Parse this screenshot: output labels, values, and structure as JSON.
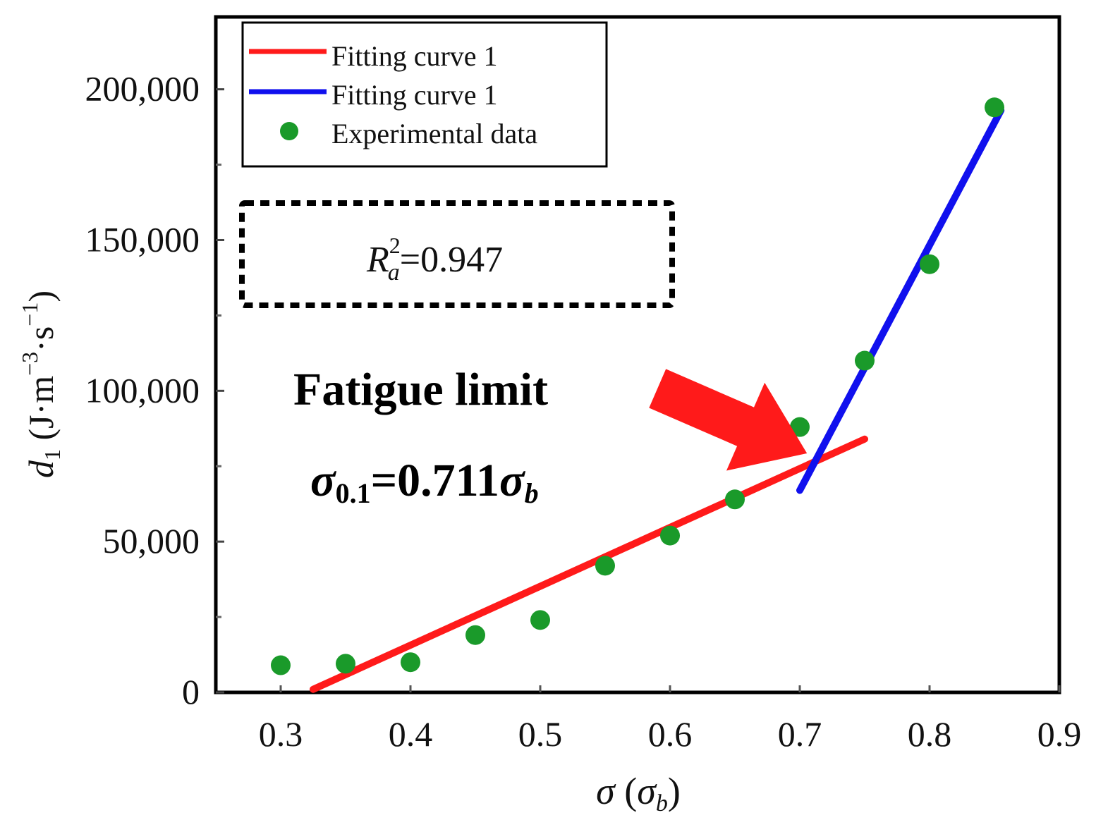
{
  "chart_data": {
    "type": "scatter",
    "xlabel": {
      "main": "σ",
      "open": " (",
      "sym": "σ",
      "sub": "b",
      "close": ")"
    },
    "ylabel": {
      "d": "d",
      "d_sub": "1",
      "unit_open": " (J·m",
      "exp1": "−3",
      "mid": "·s",
      "exp2": "−1",
      "close": ")"
    },
    "xlim": [
      0.25,
      0.9
    ],
    "ylim": [
      0,
      224000
    ],
    "x_ticks": [
      0.3,
      0.4,
      0.5,
      0.6,
      0.7,
      0.8,
      0.9
    ],
    "x_tick_labels": [
      "0.3",
      "0.4",
      "0.5",
      "0.6",
      "0.7",
      "0.8",
      "0.9"
    ],
    "y_ticks": [
      0,
      50000,
      100000,
      150000,
      200000
    ],
    "y_tick_labels": [
      "0",
      "50,000",
      "100,000",
      "150,000",
      "200,000"
    ],
    "y_minor_ticks": [
      25000,
      75000,
      125000,
      175000
    ],
    "series": [
      {
        "name": "Experimental data",
        "type": "scatter",
        "color": "#1a9a2a",
        "x": [
          0.3,
          0.35,
          0.4,
          0.45,
          0.5,
          0.55,
          0.6,
          0.65,
          0.7,
          0.75,
          0.8,
          0.85
        ],
        "y": [
          9000,
          9500,
          10000,
          19000,
          24000,
          42000,
          52000,
          64000,
          88000,
          110000,
          142000,
          194000
        ]
      },
      {
        "name": "Fitting curve 1",
        "type": "line",
        "color": "#ff1a1a",
        "x": [
          0.325,
          0.75
        ],
        "y": [
          1000,
          84000
        ]
      },
      {
        "name": "Fitting curve 1",
        "type": "line",
        "color": "#1010ee",
        "x": [
          0.7,
          0.855
        ],
        "y": [
          67000,
          193000
        ]
      }
    ],
    "legend": {
      "position": "top-left",
      "entries": [
        {
          "label": "Fitting curve 1",
          "marker": "line",
          "color": "#ff1a1a"
        },
        {
          "label": "Fitting curve 1",
          "marker": "line",
          "color": "#1010ee"
        },
        {
          "label": "Experimental data",
          "marker": "dot",
          "color": "#1a9a2a"
        }
      ]
    },
    "annotations": {
      "r2": {
        "r": "R",
        "sup": "2",
        "sub": "a",
        "value": "=0.947"
      },
      "fatigue_title": "Fatigue limit",
      "fatigue_eq": {
        "sym": "σ",
        "sub": "0.1",
        "eq": "=0.711",
        "sym2": "σ",
        "sub2": "b"
      },
      "arrow_color": "#ff1a1a",
      "arrow_target": {
        "x": 0.711,
        "y": 76000
      }
    }
  }
}
